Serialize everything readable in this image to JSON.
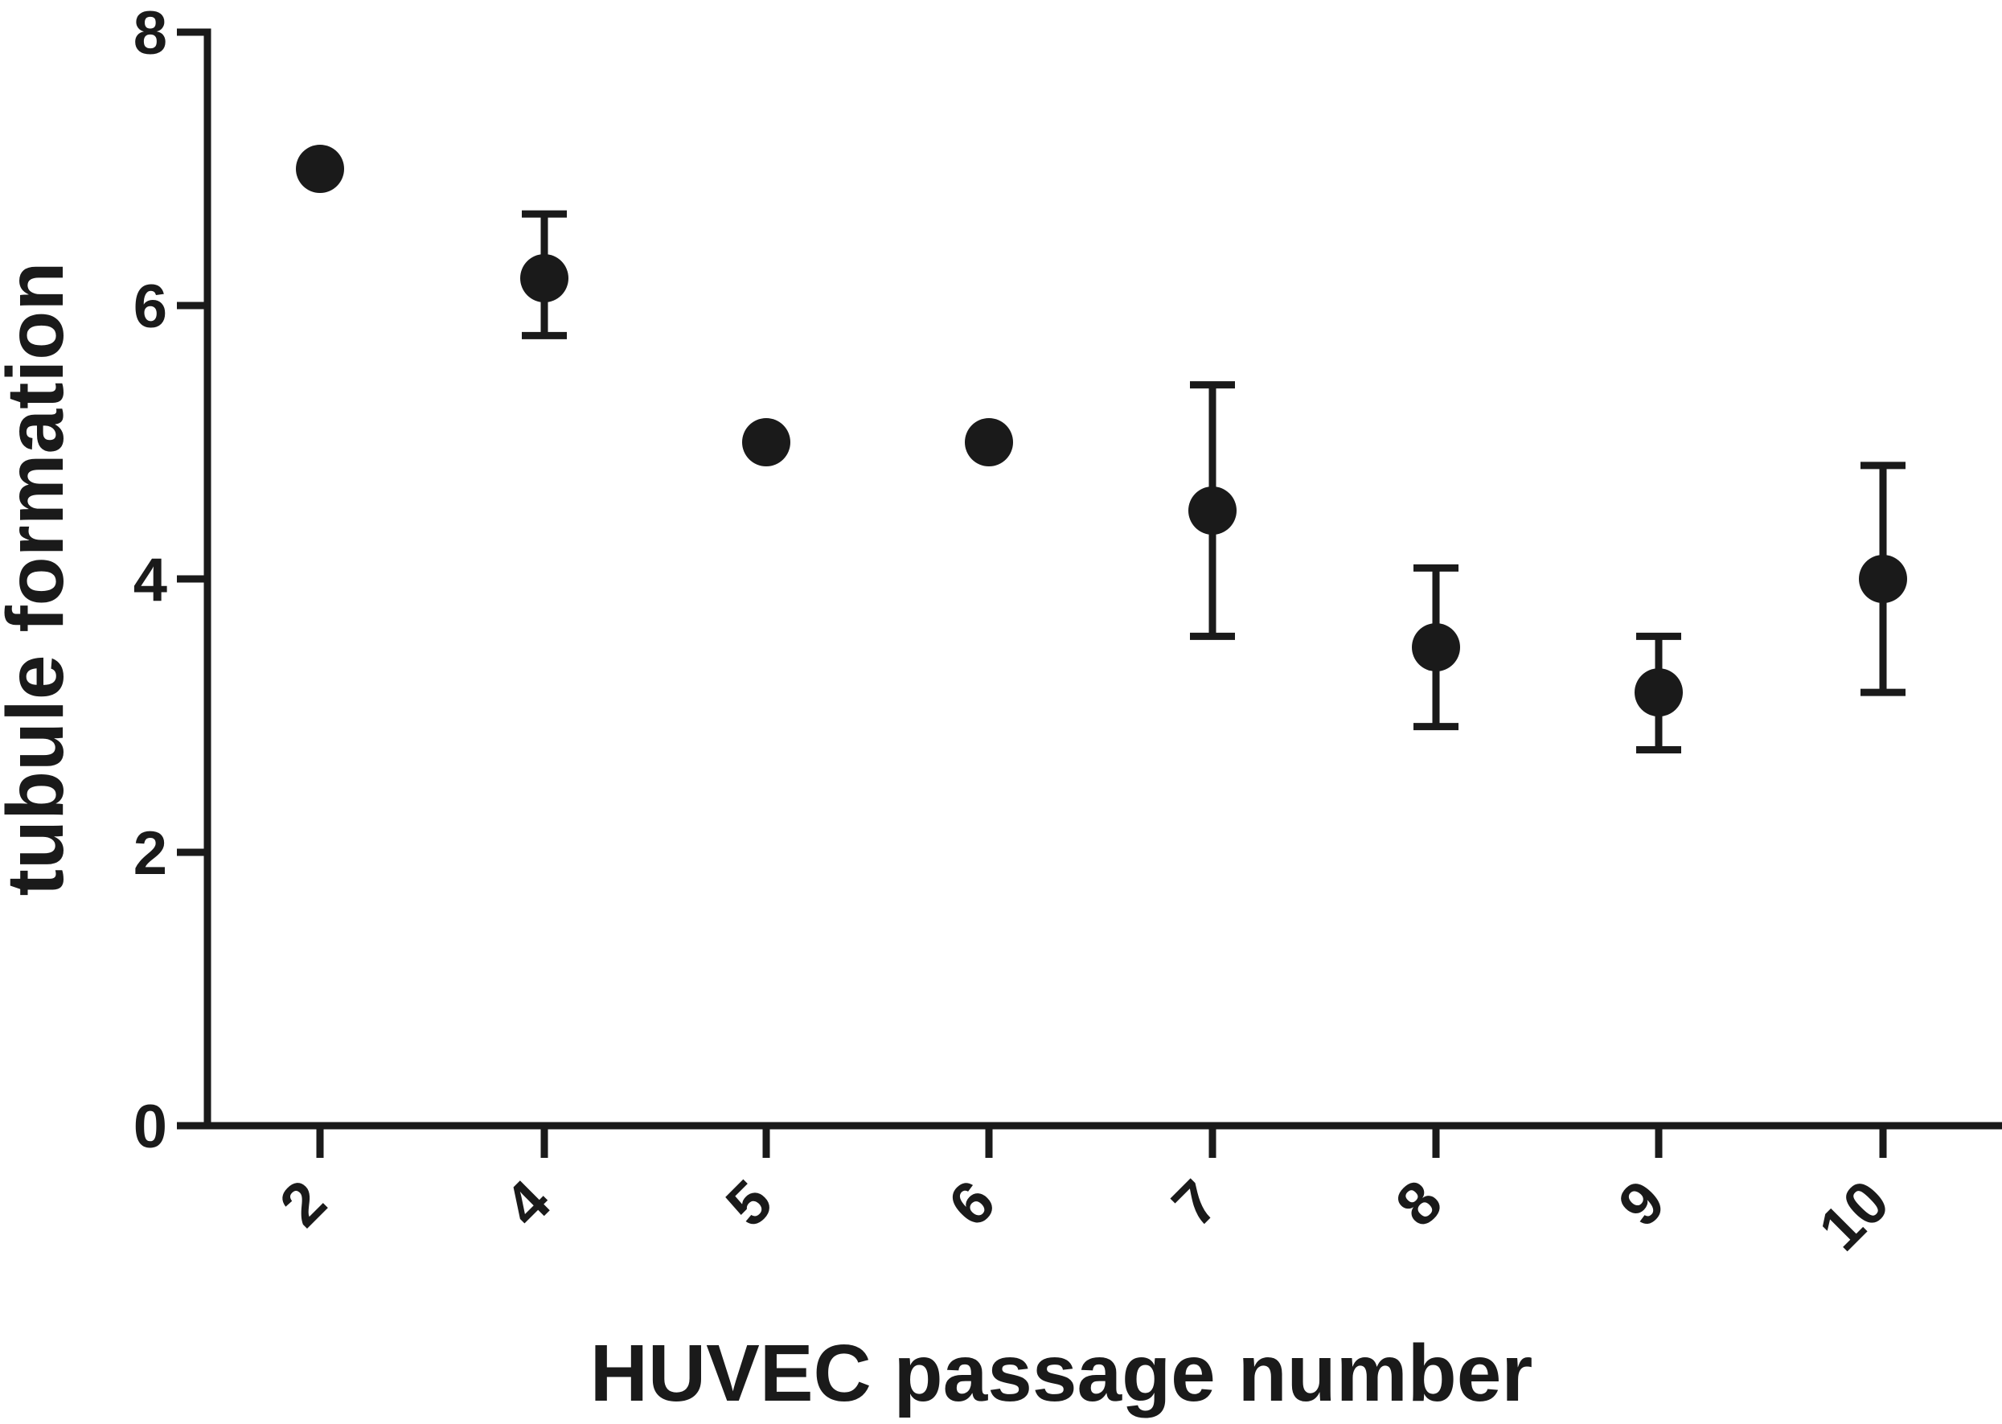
{
  "chart_data": {
    "type": "scatter",
    "title": "",
    "xlabel": "HUVEC passage number",
    "ylabel": "tubule formation",
    "categories": [
      "2",
      "4",
      "5",
      "6",
      "7",
      "8",
      "9",
      "10"
    ],
    "ylim": [
      0,
      8
    ],
    "yticks": [
      "0",
      "2",
      "4",
      "6",
      "8"
    ],
    "grid": false,
    "legend": "none",
    "series": [
      {
        "values": [
          7.0,
          6.2,
          5.0,
          5.0,
          4.5,
          3.5,
          3.17,
          4.0
        ],
        "error_upper": [
          null,
          6.67,
          null,
          null,
          5.42,
          4.08,
          3.58,
          4.83
        ],
        "error_lower": [
          null,
          5.78,
          null,
          null,
          3.58,
          2.92,
          2.75,
          3.17
        ]
      }
    ],
    "colors": {
      "marker": "#1a1a1a",
      "axes": "#1a1a1a"
    }
  }
}
